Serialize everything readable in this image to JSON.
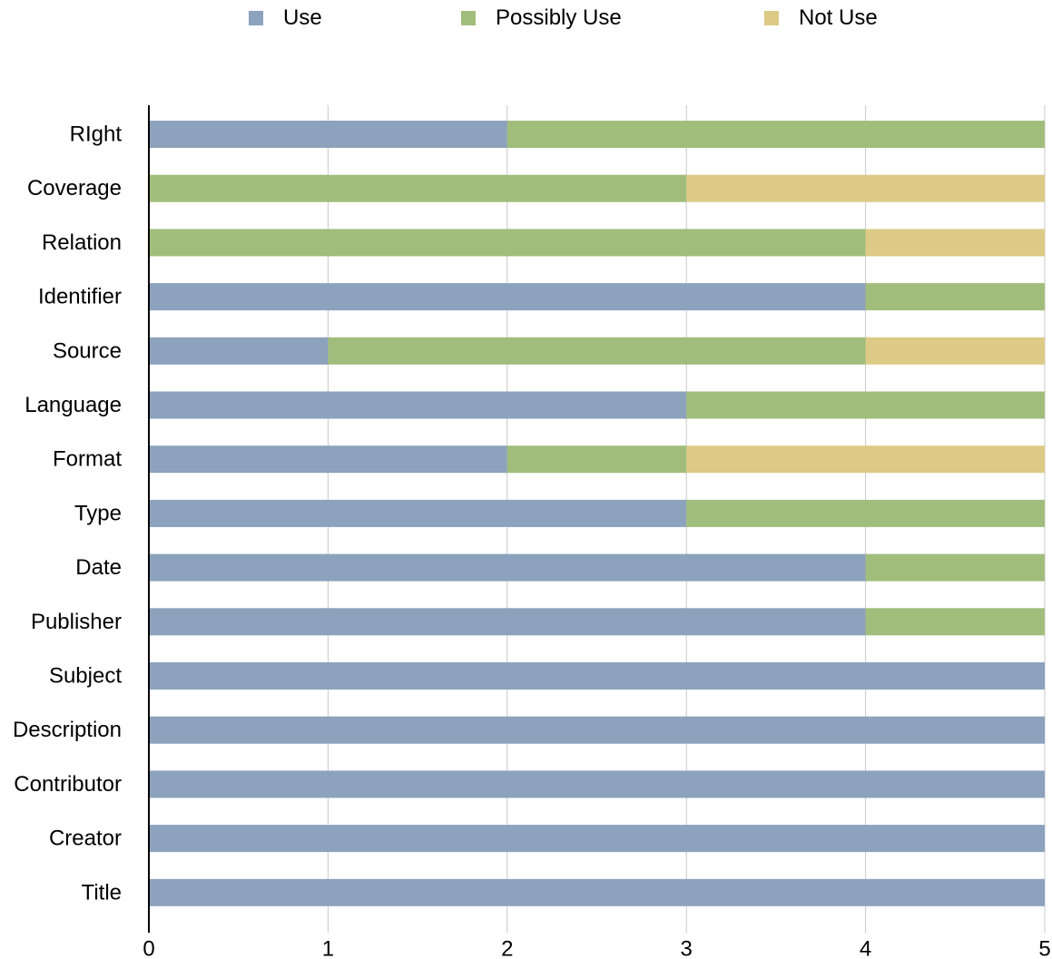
{
  "chart_data": {
    "type": "bar",
    "orientation": "horizontal",
    "stacked": true,
    "categories": [
      "RIght",
      "Coverage",
      "Relation",
      "Identifier",
      "Source",
      "Language",
      "Format",
      "Type",
      "Date",
      "Publisher",
      "Subject",
      "Description",
      "Contributor",
      "Creator",
      "Title"
    ],
    "series": [
      {
        "name": "Use",
        "color": "#8ca2bd",
        "values": [
          2,
          0,
          0,
          4,
          1,
          3,
          2,
          3,
          4,
          4,
          5,
          5,
          5,
          5,
          5
        ]
      },
      {
        "name": "Possibly Use",
        "color": "#a1bd7c",
        "values": [
          3,
          3,
          4,
          1,
          3,
          2,
          1,
          2,
          1,
          1,
          0,
          0,
          0,
          0,
          0
        ]
      },
      {
        "name": "Not Use",
        "color": "#dcca86",
        "values": [
          0,
          2,
          1,
          0,
          1,
          0,
          2,
          0,
          0,
          0,
          0,
          0,
          0,
          0,
          0
        ]
      }
    ],
    "xlim": [
      0,
      5
    ],
    "xticks": [
      "0",
      "1",
      "2",
      "3",
      "4",
      "5"
    ],
    "grid": "vertical",
    "legend": "top-center",
    "title": "",
    "xlabel": "",
    "ylabel": ""
  }
}
